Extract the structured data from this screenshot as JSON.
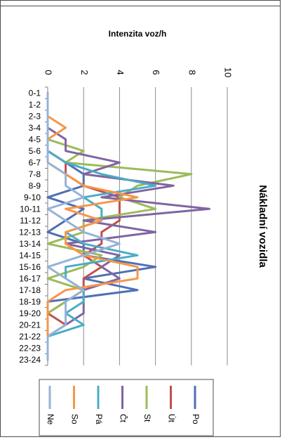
{
  "chart_data": {
    "type": "line",
    "title": "Nákladní vozidla",
    "ylabel": "Intenzita voz/h",
    "xlabel": "",
    "categories": [
      "0-1",
      "1-2",
      "2-3",
      "3-4",
      "4-5",
      "5-6",
      "6-7",
      "7-8",
      "8-9",
      "9-10",
      "10-11",
      "11-12",
      "12-13",
      "13-14",
      "14-15",
      "15-16",
      "16-17",
      "17-18",
      "18-19",
      "19-20",
      "20-21",
      "21-22",
      "22-23",
      "23-24"
    ],
    "ylim": [
      0,
      10
    ],
    "yticks": [
      0,
      2,
      4,
      6,
      8,
      10
    ],
    "grid": true,
    "legend": "bottom",
    "orientation": "rotated 90° clockwise",
    "series": [
      {
        "name": "Po",
        "color": "#4f6fb5",
        "values": [
          0,
          0,
          0,
          0,
          0,
          0,
          1,
          2,
          2,
          0,
          2,
          1,
          0,
          2,
          2,
          6,
          2,
          5,
          0,
          0,
          0,
          0,
          0,
          0
        ]
      },
      {
        "name": "Út",
        "color": "#c0504d",
        "values": [
          0,
          0,
          0,
          0,
          0,
          0,
          1,
          1,
          2,
          4,
          4,
          4,
          3,
          3,
          2,
          3,
          2,
          2,
          1,
          0,
          1,
          0,
          0,
          0
        ]
      },
      {
        "name": "St",
        "color": "#9bbb59",
        "values": [
          0,
          0,
          0,
          0,
          0,
          2,
          1,
          8,
          5,
          4,
          6,
          2,
          2,
          0,
          3,
          2,
          0,
          2,
          1,
          0,
          0,
          0,
          0,
          0
        ]
      },
      {
        "name": "Čt",
        "color": "#8064a2",
        "values": [
          0,
          0,
          0,
          0,
          1,
          1,
          4,
          2,
          7,
          3,
          9,
          2,
          6,
          1,
          4,
          3,
          4,
          2,
          2,
          2,
          1,
          0,
          0,
          0
        ]
      },
      {
        "name": "Pá",
        "color": "#4bacc6",
        "values": [
          0,
          0,
          0,
          0,
          0,
          0,
          1,
          3,
          6,
          2,
          3,
          3,
          1,
          2,
          5,
          1,
          1,
          2,
          2,
          1,
          2,
          0,
          0,
          0
        ]
      },
      {
        "name": "So",
        "color": "#f79646",
        "values": [
          0,
          0,
          0,
          1,
          0,
          0,
          0,
          1,
          2,
          5,
          1,
          3,
          1,
          1,
          2,
          5,
          5,
          1,
          0,
          0,
          0,
          0,
          0,
          0
        ]
      },
      {
        "name": "Ne",
        "color": "#95b3d7",
        "values": [
          0,
          0,
          0,
          0,
          0,
          0,
          0,
          1,
          1,
          2,
          0,
          1,
          2,
          4,
          2,
          0,
          1,
          2,
          1,
          1,
          1,
          0,
          0,
          0
        ]
      }
    ]
  }
}
